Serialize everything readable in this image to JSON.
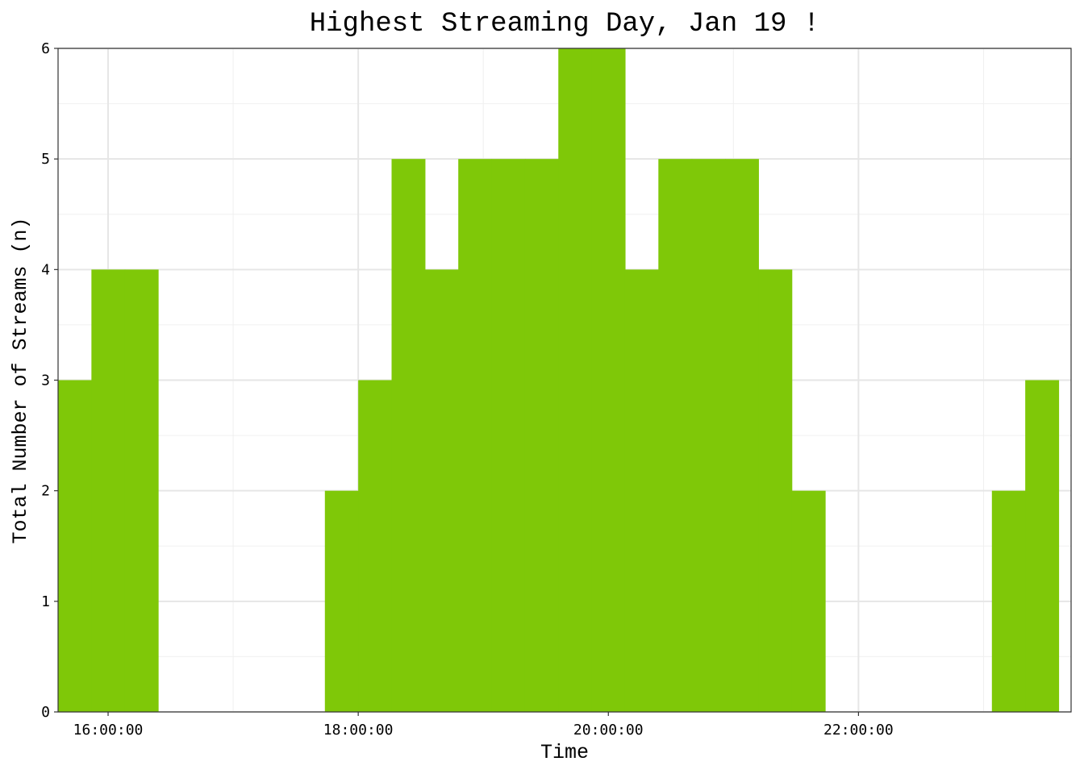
{
  "chart_data": {
    "type": "bar",
    "title": "Highest Streaming Day, Jan 19 !",
    "xlabel": "Time",
    "ylabel": "Total Number of Streams (n)",
    "xlim": [
      "15:36:00",
      "23:42:00"
    ],
    "ylim": [
      0,
      6
    ],
    "x_ticks": [
      "16:00:00",
      "18:00:00",
      "20:00:00",
      "22:00:00"
    ],
    "y_ticks": [
      0,
      1,
      2,
      3,
      4,
      5,
      6
    ],
    "bin_width_minutes": 16,
    "bins": [
      {
        "start": "15:36:00",
        "value": 3
      },
      {
        "start": "15:52:00",
        "value": 4
      },
      {
        "start": "16:08:00",
        "value": 4
      },
      {
        "start": "16:24:00",
        "value": 0
      },
      {
        "start": "16:40:00",
        "value": 0
      },
      {
        "start": "16:56:00",
        "value": 0
      },
      {
        "start": "17:12:00",
        "value": 0
      },
      {
        "start": "17:28:00",
        "value": 0
      },
      {
        "start": "17:44:00",
        "value": 2
      },
      {
        "start": "18:00:00",
        "value": 3
      },
      {
        "start": "18:16:00",
        "value": 5
      },
      {
        "start": "18:32:00",
        "value": 4
      },
      {
        "start": "18:48:00",
        "value": 5
      },
      {
        "start": "19:04:00",
        "value": 5
      },
      {
        "start": "19:20:00",
        "value": 5
      },
      {
        "start": "19:36:00",
        "value": 6
      },
      {
        "start": "19:52:00",
        "value": 6
      },
      {
        "start": "20:08:00",
        "value": 4
      },
      {
        "start": "20:24:00",
        "value": 5
      },
      {
        "start": "20:40:00",
        "value": 5
      },
      {
        "start": "20:56:00",
        "value": 5
      },
      {
        "start": "21:12:00",
        "value": 4
      },
      {
        "start": "21:28:00",
        "value": 2
      },
      {
        "start": "21:44:00",
        "value": 0
      },
      {
        "start": "22:00:00",
        "value": 0
      },
      {
        "start": "22:16:00",
        "value": 0
      },
      {
        "start": "22:32:00",
        "value": 0
      },
      {
        "start": "22:48:00",
        "value": 0
      },
      {
        "start": "23:04:00",
        "value": 2
      },
      {
        "start": "23:20:00",
        "value": 3
      }
    ],
    "grid": true,
    "legend": "none",
    "colors": {
      "bar": "#7fc808",
      "grid_major": "#e6e6e6",
      "grid_minor": "#f0f0f0",
      "panel_border": "#333333",
      "background": "#ffffff"
    }
  }
}
